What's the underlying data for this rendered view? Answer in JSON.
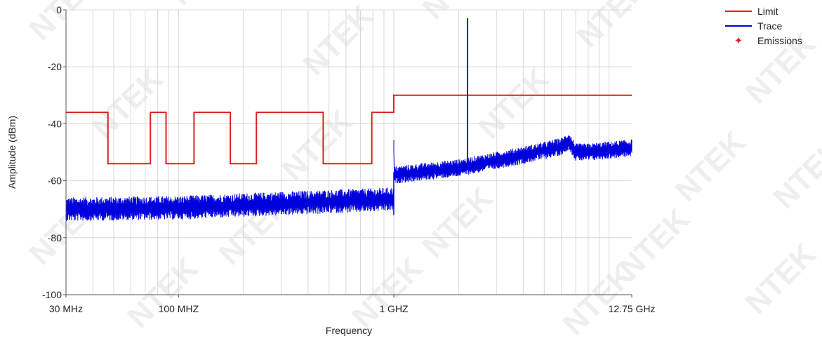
{
  "chart_data": {
    "type": "line",
    "xscale": "log",
    "xlabel": "Frequency",
    "ylabel": "Amplitude (dBm)",
    "xlim": [
      30,
      12750
    ],
    "ylim": [
      -100,
      0
    ],
    "y_ticks": [
      0,
      -20,
      -40,
      -60,
      -80,
      -100
    ],
    "x_ticks": [
      {
        "value": 30,
        "label": "30 MHz"
      },
      {
        "value": 100,
        "label": "100 MHZ"
      },
      {
        "value": 1000,
        "label": "1 GHZ"
      },
      {
        "value": 12750,
        "label": "12.75 GHz"
      }
    ],
    "grid": true,
    "legend_position": "top-right",
    "legend": [
      {
        "name": "Limit",
        "color": "#dd2222",
        "marker": "line"
      },
      {
        "name": "Trace",
        "color": "#0000dd",
        "marker": "line"
      },
      {
        "name": "Emissions",
        "color": "#dd2222",
        "marker": "star"
      }
    ],
    "series": [
      {
        "name": "Limit",
        "color": "#dd2222",
        "x": [
          30,
          47,
          47,
          74,
          74,
          87.5,
          87.5,
          118,
          118,
          174,
          174,
          230,
          230,
          470,
          470,
          790,
          790,
          1000,
          1000,
          12750
        ],
        "y": [
          -36,
          -36,
          -54,
          -54,
          -36,
          -36,
          -54,
          -54,
          -36,
          -36,
          -54,
          -54,
          -36,
          -36,
          -54,
          -54,
          -36,
          -36,
          -30,
          -30
        ]
      },
      {
        "name": "Trace",
        "color": "#0000dd",
        "x": [
          30,
          100,
          300,
          1000,
          1000,
          2000,
          4000,
          6000,
          6500,
          7000,
          8000,
          12750
        ],
        "y": [
          -70,
          -69.5,
          -68,
          -66.5,
          -58,
          -55.5,
          -51,
          -48,
          -46,
          -50,
          -50,
          -48.5
        ],
        "spike": {
          "x": 2200,
          "y": -3,
          "base": -53
        }
      }
    ]
  },
  "watermark": "NTEK"
}
